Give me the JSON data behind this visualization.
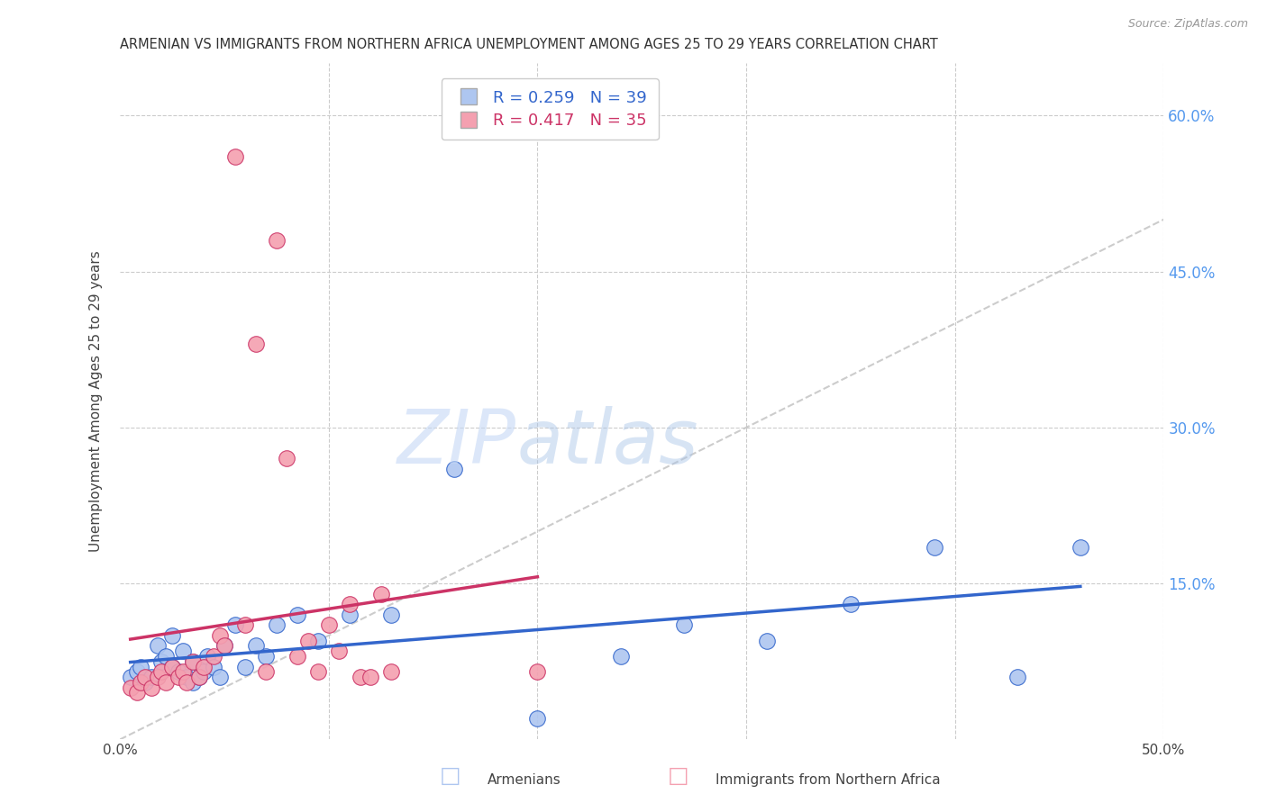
{
  "title": "ARMENIAN VS IMMIGRANTS FROM NORTHERN AFRICA UNEMPLOYMENT AMONG AGES 25 TO 29 YEARS CORRELATION CHART",
  "source": "Source: ZipAtlas.com",
  "ylabel": "Unemployment Among Ages 25 to 29 years",
  "xlabel": "",
  "xlim": [
    0.0,
    0.5
  ],
  "ylim": [
    0.0,
    0.65
  ],
  "xticks": [
    0.0,
    0.1,
    0.2,
    0.3,
    0.4,
    0.5
  ],
  "yticks": [
    0.0,
    0.15,
    0.3,
    0.45,
    0.6
  ],
  "grid_color": "#cccccc",
  "background_color": "#ffffff",
  "armenians_color": "#aec6f0",
  "immigrants_color": "#f4a0b0",
  "armenians_R": 0.259,
  "armenians_N": 39,
  "immigrants_R": 0.417,
  "immigrants_N": 35,
  "trend_armenians_color": "#3366cc",
  "trend_immigrants_color": "#cc3366",
  "legend_label_armenians": "Armenians",
  "legend_label_immigrants": "Immigrants from Northern Africa",
  "watermark_zip": "ZIP",
  "watermark_atlas": "atlas",
  "armenians_x": [
    0.005,
    0.008,
    0.01,
    0.012,
    0.015,
    0.018,
    0.02,
    0.022,
    0.025,
    0.025,
    0.028,
    0.03,
    0.032,
    0.035,
    0.035,
    0.038,
    0.04,
    0.042,
    0.045,
    0.048,
    0.05,
    0.055,
    0.06,
    0.065,
    0.07,
    0.075,
    0.085,
    0.095,
    0.11,
    0.13,
    0.16,
    0.2,
    0.24,
    0.27,
    0.31,
    0.35,
    0.39,
    0.43,
    0.46
  ],
  "armenians_y": [
    0.06,
    0.065,
    0.07,
    0.055,
    0.06,
    0.09,
    0.075,
    0.08,
    0.1,
    0.07,
    0.065,
    0.085,
    0.06,
    0.055,
    0.075,
    0.06,
    0.065,
    0.08,
    0.07,
    0.06,
    0.09,
    0.11,
    0.07,
    0.09,
    0.08,
    0.11,
    0.12,
    0.095,
    0.12,
    0.12,
    0.26,
    0.02,
    0.08,
    0.11,
    0.095,
    0.13,
    0.185,
    0.06,
    0.185
  ],
  "immigrants_x": [
    0.005,
    0.008,
    0.01,
    0.012,
    0.015,
    0.018,
    0.02,
    0.022,
    0.025,
    0.028,
    0.03,
    0.032,
    0.035,
    0.038,
    0.04,
    0.045,
    0.048,
    0.05,
    0.055,
    0.06,
    0.065,
    0.07,
    0.075,
    0.08,
    0.085,
    0.09,
    0.095,
    0.1,
    0.105,
    0.11,
    0.115,
    0.12,
    0.125,
    0.13,
    0.2
  ],
  "immigrants_y": [
    0.05,
    0.045,
    0.055,
    0.06,
    0.05,
    0.06,
    0.065,
    0.055,
    0.07,
    0.06,
    0.065,
    0.055,
    0.075,
    0.06,
    0.07,
    0.08,
    0.1,
    0.09,
    0.56,
    0.11,
    0.38,
    0.065,
    0.48,
    0.27,
    0.08,
    0.095,
    0.065,
    0.11,
    0.085,
    0.13,
    0.06,
    0.06,
    0.14,
    0.065,
    0.065
  ]
}
